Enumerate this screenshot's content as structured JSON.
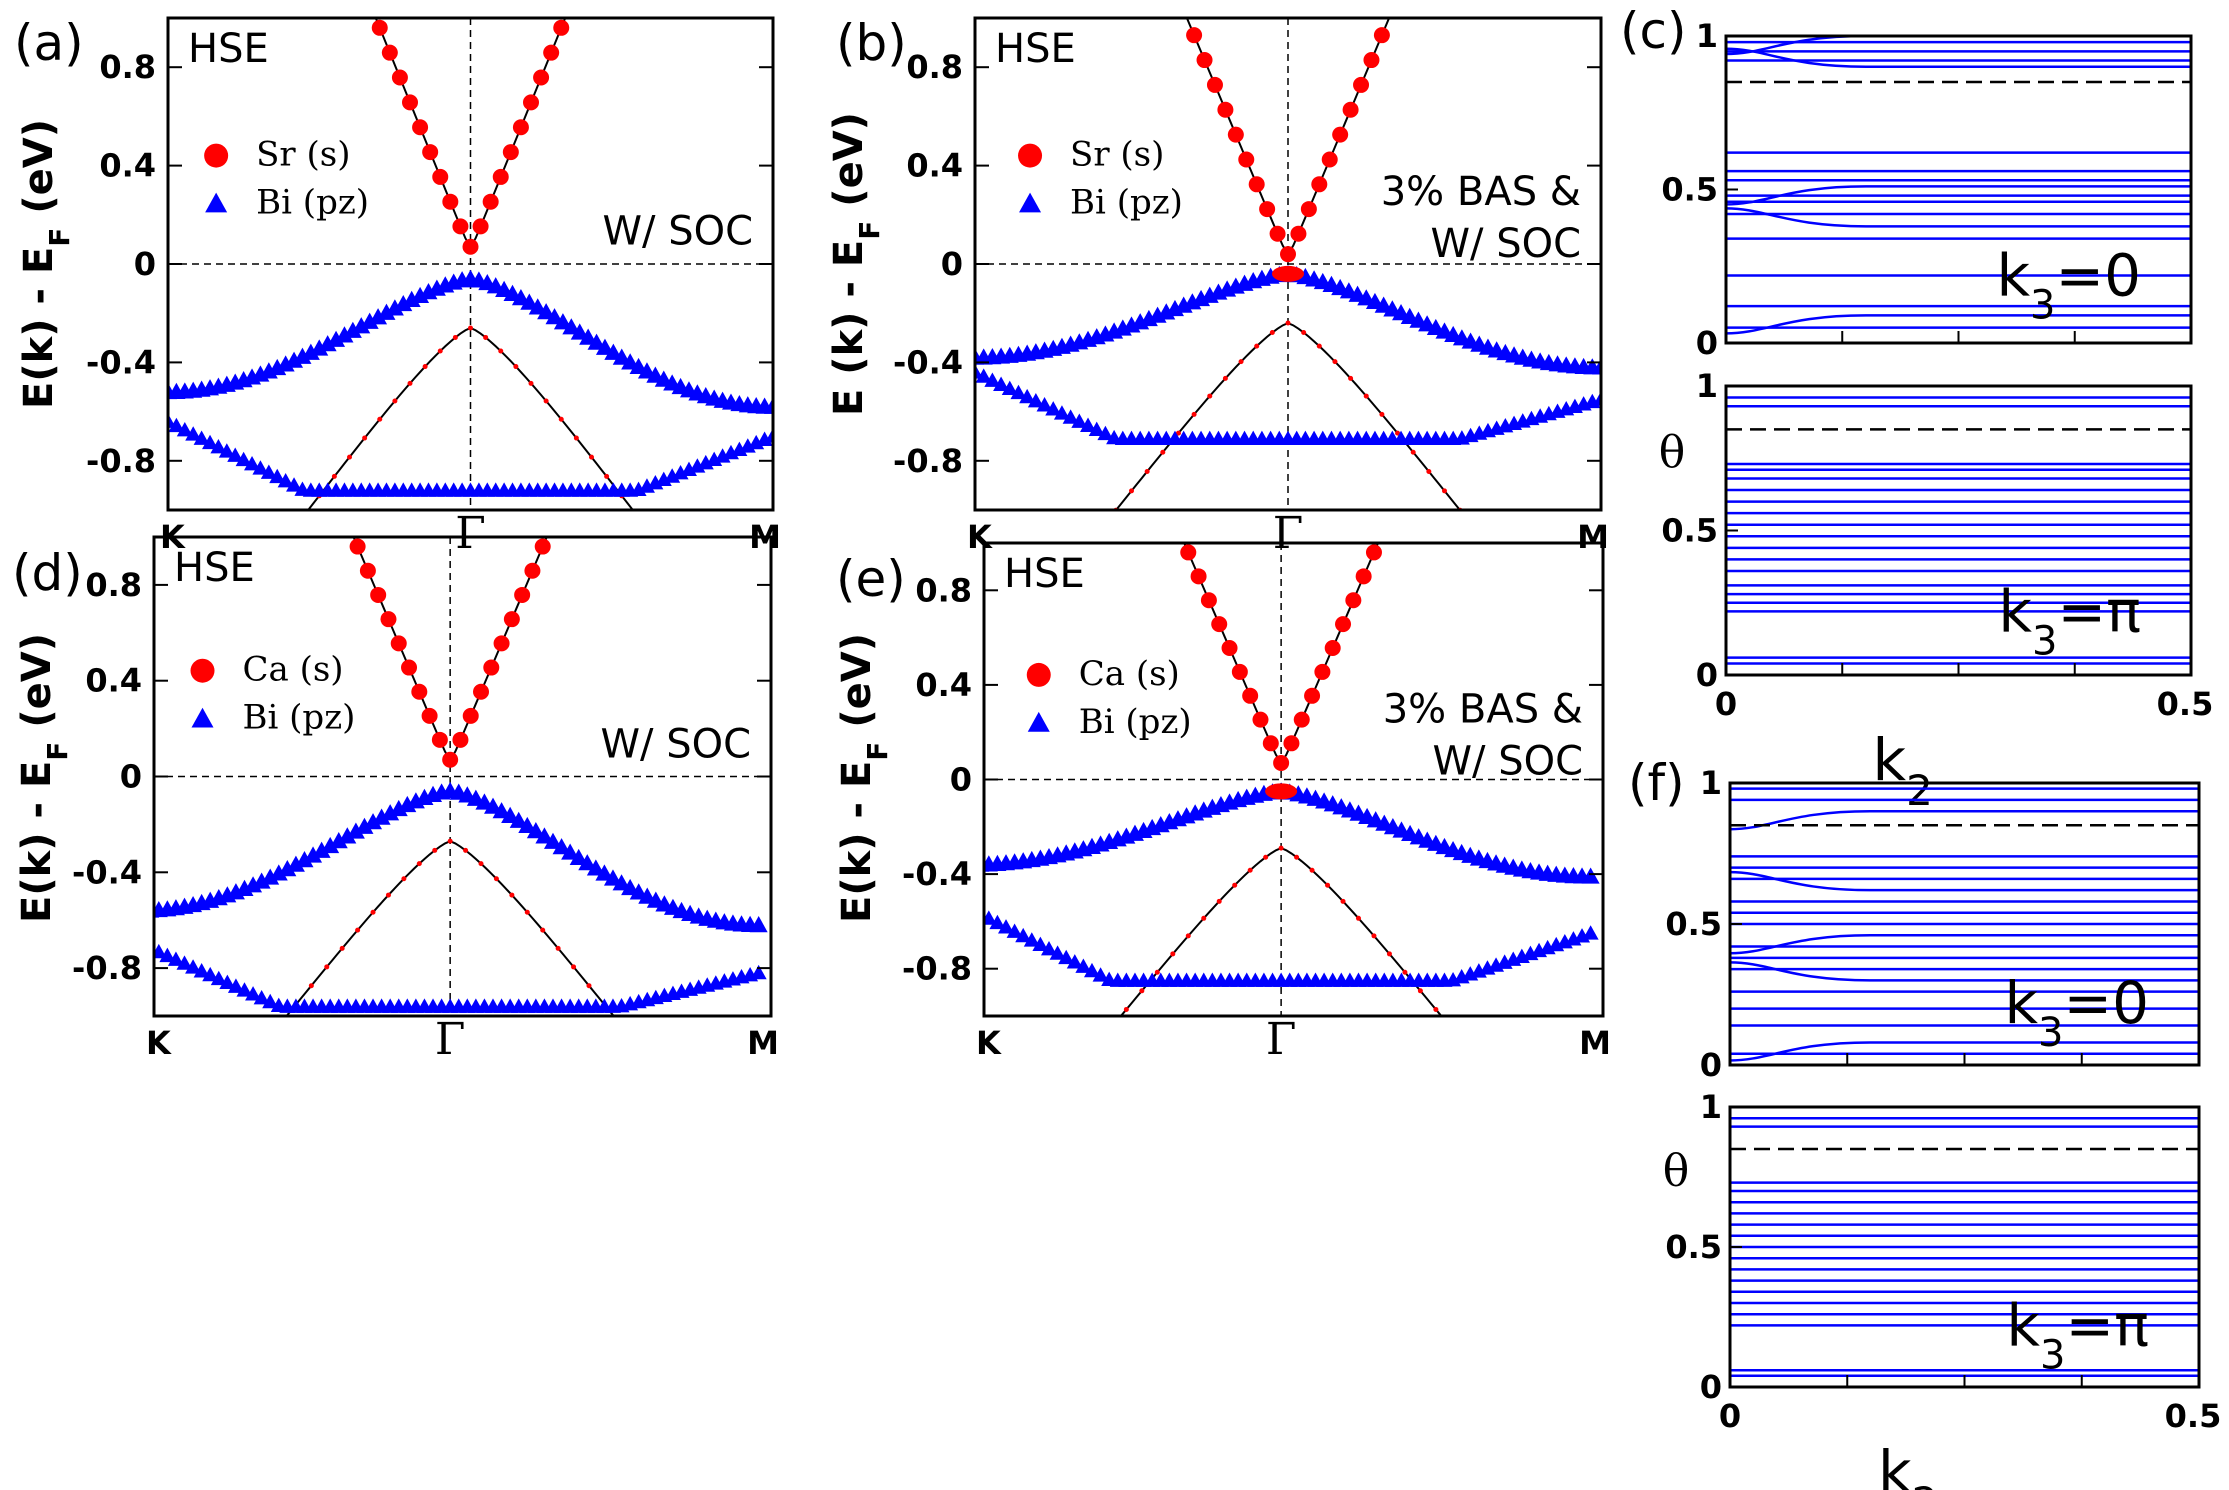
{
  "chart_data": [
    {
      "id": "a",
      "type": "scatter",
      "panel_label": "(a)",
      "method_label": "HSE",
      "annotation": [
        "W/ SOC"
      ],
      "ylabel": "E(k) - E",
      "ylabel_sub": "F",
      "ylabel_unit": " (eV)",
      "ylim": [
        -1.0,
        1.0
      ],
      "yticks": [
        "0.8",
        "0.4",
        "0",
        "-0.4",
        "-0.8"
      ],
      "ytick_values": [
        0.8,
        0.4,
        0,
        -0.4,
        -0.8
      ],
      "xticks": [
        "K",
        "Γ",
        "M"
      ],
      "gamma_position": 0.5,
      "legend": [
        {
          "label": "Sr (s)",
          "marker": "circle",
          "color": "#ff0000"
        },
        {
          "label": "Bi (pz)",
          "marker": "triangle",
          "color": "#0000ff"
        }
      ],
      "bands": {
        "conduction_min": 0.07,
        "valence_top": -0.06,
        "valence_K": -0.52,
        "valence_M": -0.58,
        "light_hole_top": -0.26,
        "flat_band": -0.92,
        "lower_band_K": -0.64,
        "lower_band_M": -0.7
      }
    },
    {
      "id": "b",
      "type": "scatter",
      "panel_label": "(b)",
      "method_label": "HSE",
      "annotation": [
        "3% BAS &",
        "W/ SOC"
      ],
      "ylabel": "E (k) - E",
      "ylabel_sub": "F",
      "ylabel_unit": " (eV)",
      "ylim": [
        -1.0,
        1.0
      ],
      "yticks": [
        "0.8",
        "0.4",
        "0",
        "-0.4",
        "-0.8"
      ],
      "ytick_values": [
        0.8,
        0.4,
        0,
        -0.4,
        -0.8
      ],
      "xticks": [
        "K",
        "Γ",
        "M"
      ],
      "gamma_position": 0.5,
      "legend": [
        {
          "label": "Sr (s)",
          "marker": "circle",
          "color": "#ff0000"
        },
        {
          "label": "Bi (pz)",
          "marker": "triangle",
          "color": "#0000ff"
        }
      ],
      "bands": {
        "conduction_min": 0.04,
        "valence_top": -0.04,
        "valence_K": -0.38,
        "valence_M": -0.42,
        "light_hole_top": -0.24,
        "flat_band": -0.71,
        "lower_band_K": -0.44,
        "lower_band_M": -0.55
      }
    },
    {
      "id": "c",
      "type": "line",
      "panel_label": "(c)",
      "xlabel": "k",
      "xlabel_sub": "2",
      "ylabel": "θ",
      "xlim": [
        0,
        0.5
      ],
      "xticks": [
        "0",
        "0.5"
      ],
      "ylim": [
        0,
        1
      ],
      "yticks": [
        "0",
        "0.5",
        "1"
      ],
      "reference_line": 0.85,
      "subplots": [
        {
          "label": "k",
          "label_sub": "3",
          "label_value": "=0",
          "levels": [
            0.05,
            0.09,
            0.12,
            0.22,
            0.34,
            0.38,
            0.42,
            0.46,
            0.48,
            0.51,
            0.53,
            0.56,
            0.62,
            0.9,
            0.92,
            0.95,
            0.98,
            1.0
          ]
        },
        {
          "label": "k",
          "label_sub": "3",
          "label_value": "=π",
          "levels": [
            0.04,
            0.06,
            0.22,
            0.25,
            0.28,
            0.31,
            0.36,
            0.4,
            0.44,
            0.48,
            0.52,
            0.56,
            0.6,
            0.64,
            0.68,
            0.71,
            0.73,
            0.93,
            0.96
          ]
        }
      ]
    },
    {
      "id": "d",
      "type": "scatter",
      "panel_label": "(d)",
      "method_label": "HSE",
      "annotation": [
        "W/ SOC"
      ],
      "ylabel": "E(k) - E",
      "ylabel_sub": "F",
      "ylabel_unit": " (eV)",
      "ylim": [
        -1.0,
        1.0
      ],
      "yticks": [
        "0.8",
        "0.4",
        "0",
        "-0.4",
        "-0.8"
      ],
      "ytick_values": [
        0.8,
        0.4,
        0,
        -0.4,
        -0.8
      ],
      "xticks": [
        "K",
        "Γ",
        "M"
      ],
      "gamma_position": 0.48,
      "legend": [
        {
          "label": "Ca (s)",
          "marker": "circle",
          "color": "#ff0000"
        },
        {
          "label": "Bi (pz)",
          "marker": "triangle",
          "color": "#0000ff"
        }
      ],
      "bands": {
        "conduction_min": 0.07,
        "valence_top": -0.06,
        "valence_K": -0.56,
        "valence_M": -0.62,
        "light_hole_top": -0.27,
        "flat_band": -0.96,
        "lower_band_K": -0.7,
        "lower_band_M": -0.82
      }
    },
    {
      "id": "e",
      "type": "scatter",
      "panel_label": "(e)",
      "method_label": "HSE",
      "annotation": [
        "3% BAS &",
        "W/ SOC"
      ],
      "ylabel": "E(k) - E",
      "ylabel_sub": "F",
      "ylabel_unit": " (eV)",
      "ylim": [
        -1.0,
        1.0
      ],
      "yticks": [
        "0.8",
        "0.4",
        "0",
        "-0.4",
        "-0.8"
      ],
      "ytick_values": [
        0.8,
        0.4,
        0,
        -0.4,
        -0.8
      ],
      "xticks": [
        "K",
        "Γ",
        "M"
      ],
      "gamma_position": 0.48,
      "legend": [
        {
          "label": "Ca (s)",
          "marker": "circle",
          "color": "#ff0000"
        },
        {
          "label": "Bi (pz)",
          "marker": "triangle",
          "color": "#0000ff"
        }
      ],
      "bands": {
        "conduction_min": 0.07,
        "valence_top": -0.05,
        "valence_K": -0.36,
        "valence_M": -0.41,
        "light_hole_top": -0.29,
        "flat_band": -0.85,
        "lower_band_K": -0.55,
        "lower_band_M": -0.65
      }
    },
    {
      "id": "f",
      "type": "line",
      "panel_label": "(f)",
      "xlabel": "k",
      "xlabel_sub": "2",
      "ylabel": "θ",
      "xlim": [
        0,
        0.5
      ],
      "xticks": [
        "0",
        "0.5"
      ],
      "ylim": [
        0,
        1
      ],
      "yticks": [
        "0",
        "0.5",
        "1"
      ],
      "reference_line": 0.85,
      "subplots": [
        {
          "label": "k",
          "label_sub": "3",
          "label_value": "=0",
          "levels": [
            0.04,
            0.08,
            0.14,
            0.2,
            0.26,
            0.3,
            0.34,
            0.38,
            0.42,
            0.46,
            0.5,
            0.54,
            0.58,
            0.62,
            0.66,
            0.7,
            0.74,
            0.9,
            0.94,
            0.98
          ]
        },
        {
          "label": "k",
          "label_sub": "3",
          "label_value": "=π",
          "levels": [
            0.04,
            0.06,
            0.22,
            0.26,
            0.3,
            0.34,
            0.38,
            0.42,
            0.46,
            0.5,
            0.54,
            0.58,
            0.62,
            0.66,
            0.7,
            0.73,
            0.93,
            0.96
          ]
        }
      ]
    }
  ],
  "colors": {
    "s_orbital": "#ff0000",
    "pz_orbital": "#0000ff",
    "wilson_loop": "#0000ff",
    "band_line": "#000000"
  }
}
